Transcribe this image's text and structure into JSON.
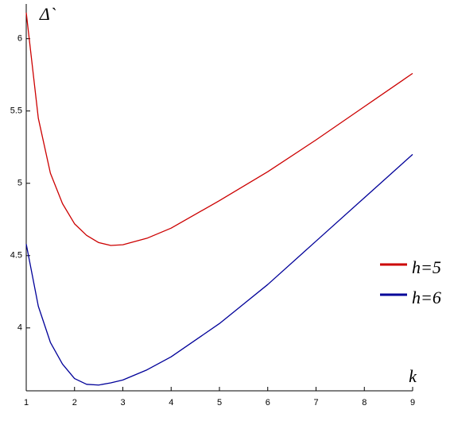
{
  "chart_data": {
    "type": "line",
    "ylabel": "Δ`",
    "xlabel": "k",
    "x": [
      1,
      1.25,
      1.5,
      1.75,
      2,
      2.25,
      2.5,
      2.75,
      3,
      3.5,
      4,
      5,
      6,
      7,
      8,
      9
    ],
    "series": [
      {
        "name": "h=5",
        "color": "#cc0000",
        "values": [
          6.18,
          5.45,
          5.07,
          4.86,
          4.72,
          4.64,
          4.59,
          4.57,
          4.575,
          4.62,
          4.69,
          4.88,
          5.08,
          5.3,
          5.53,
          5.76
        ]
      },
      {
        "name": "h=6",
        "color": "#000099",
        "values": [
          4.58,
          4.15,
          3.9,
          3.75,
          3.65,
          3.61,
          3.605,
          3.62,
          3.64,
          3.71,
          3.8,
          4.03,
          4.3,
          4.6,
          4.9,
          5.2
        ]
      }
    ],
    "xlim": [
      1,
      9
    ],
    "ylim": [
      3.565,
      6.24
    ],
    "xticks": [
      1,
      2,
      3,
      4,
      5,
      6,
      7,
      8,
      9
    ],
    "yticks": [
      4,
      4.5,
      5,
      5.5,
      6
    ],
    "legend": "right",
    "grid": false
  }
}
